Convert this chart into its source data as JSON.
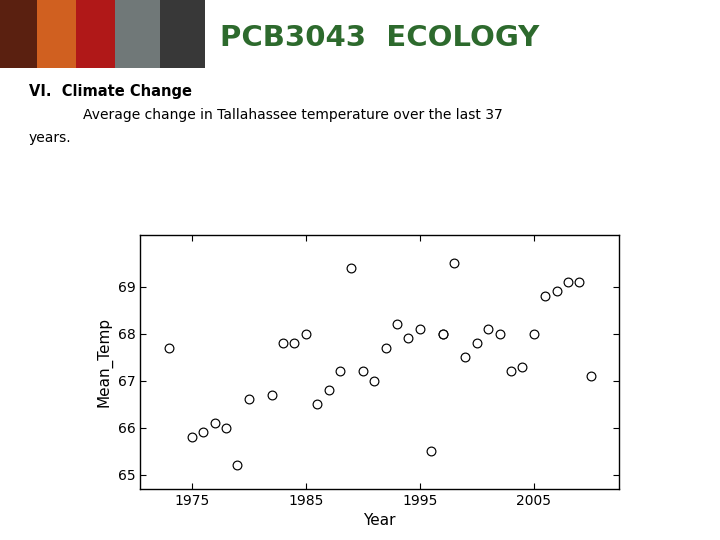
{
  "header_text": "PCB3043  ECOLOGY",
  "title_line1": "VI.  Climate Change",
  "title_line2": "Average change in Tallahassee temperature over the last 37",
  "title_line3": "years.",
  "xlabel": "Year",
  "ylabel": "Mean_Temp",
  "xlim": [
    1970.5,
    2012.5
  ],
  "ylim": [
    64.7,
    70.1
  ],
  "yticks": [
    65,
    66,
    67,
    68,
    69
  ],
  "xticks": [
    1975,
    1985,
    1995,
    2005
  ],
  "scatter_x": [
    1973,
    1975,
    1976,
    1977,
    1978,
    1979,
    1980,
    1982,
    1983,
    1984,
    1985,
    1986,
    1987,
    1988,
    1989,
    1990,
    1991,
    1992,
    1993,
    1994,
    1995,
    1996,
    1997,
    1997,
    1998,
    1999,
    2000,
    2001,
    2002,
    2003,
    2004,
    2005,
    2006,
    2007,
    2008,
    2009,
    2010
  ],
  "scatter_y": [
    67.7,
    65.8,
    65.9,
    66.1,
    66.0,
    65.2,
    66.6,
    66.7,
    67.8,
    67.8,
    68.0,
    66.5,
    66.8,
    67.2,
    69.4,
    67.2,
    67.0,
    67.7,
    68.2,
    67.9,
    68.1,
    65.5,
    68.0,
    68.0,
    69.5,
    67.5,
    67.8,
    68.1,
    68.0,
    67.2,
    67.3,
    68.0,
    68.8,
    68.9,
    69.1,
    69.1,
    67.1
  ],
  "marker_size": 40,
  "background_color": "#ffffff",
  "header_color": "#2d6a2d",
  "text_color": "#000000",
  "photo_colors": [
    "#6b2a12",
    "#c84a0a",
    "#a01010",
    "#606060",
    "#303030",
    "#804020"
  ]
}
